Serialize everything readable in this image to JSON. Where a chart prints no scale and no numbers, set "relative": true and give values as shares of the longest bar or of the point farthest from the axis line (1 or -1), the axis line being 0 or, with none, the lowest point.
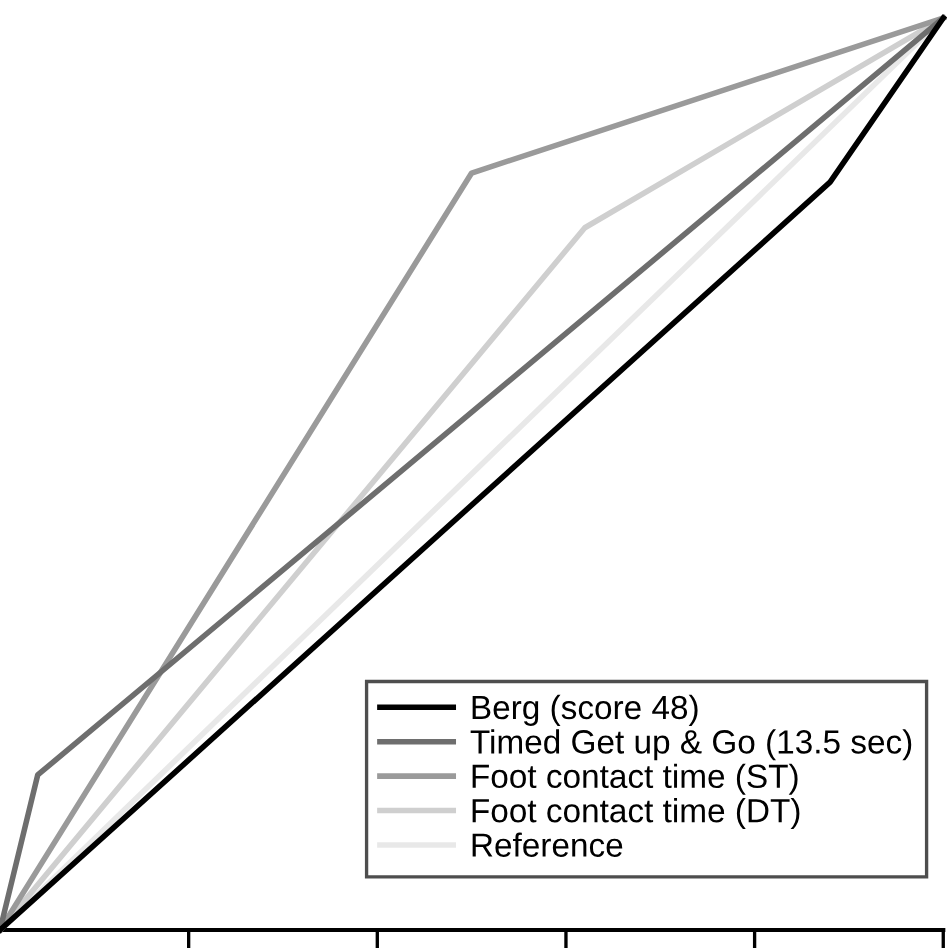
{
  "chart_data": {
    "type": "line",
    "relative": true,
    "legend": "bottom right",
    "line_style": "solid",
    "categories": [
      null,
      null,
      null,
      null,
      null,
      null,
      null,
      null,
      null,
      null,
      null,
      null,
      null,
      null,
      null,
      null,
      null,
      null,
      null,
      null,
      null,
      null,
      null,
      null,
      null,
      null,
      null,
      null,
      null,
      null,
      null,
      null,
      null,
      null,
      null,
      null,
      null,
      null,
      null,
      null,
      null,
      null,
      null,
      null,
      null,
      null,
      null,
      null,
      null,
      null,
      null
    ],
    "series": [
      {
        "name": "Berg (score 48)",
        "color": "#000000",
        "values": [
          0,
          null,
          null,
          null,
          null,
          null,
          null,
          null,
          null,
          null,
          null,
          null,
          null,
          null,
          null,
          null,
          null,
          null,
          null,
          null,
          null,
          null,
          null,
          null,
          null,
          null,
          null,
          null,
          null,
          null,
          null,
          null,
          null,
          null,
          null,
          null,
          null,
          null,
          null,
          null,
          null,
          null,
          null,
          null,
          0.82,
          null,
          null,
          null,
          null,
          null,
          1
        ]
      },
      {
        "name": "Timed Get up & Go (13.5 sec)",
        "color": "#6e6e6e",
        "values": [
          0,
          null,
          0.17,
          null,
          null,
          null,
          null,
          null,
          null,
          null,
          null,
          null,
          null,
          null,
          null,
          null,
          null,
          null,
          null,
          null,
          null,
          null,
          null,
          null,
          null,
          null,
          null,
          null,
          null,
          null,
          null,
          null,
          null,
          null,
          null,
          null,
          null,
          null,
          null,
          null,
          null,
          null,
          null,
          null,
          null,
          null,
          null,
          null,
          null,
          null,
          1
        ]
      },
      {
        "name": "Foot contact time (ST)",
        "color": "#9a9a9a",
        "values": [
          0,
          null,
          null,
          null,
          null,
          null,
          null,
          null,
          null,
          null,
          null,
          null,
          null,
          null,
          null,
          null,
          null,
          null,
          null,
          null,
          null,
          null,
          null,
          null,
          null,
          0.83,
          null,
          null,
          null,
          null,
          null,
          null,
          null,
          null,
          null,
          null,
          null,
          null,
          null,
          null,
          null,
          null,
          null,
          null,
          null,
          null,
          null,
          null,
          null,
          null,
          1
        ]
      },
      {
        "name": "Foot contact time (DT)",
        "color": "#cfcfcf",
        "values": [
          0,
          null,
          null,
          null,
          null,
          null,
          null,
          null,
          null,
          null,
          null,
          null,
          null,
          null,
          null,
          null,
          null,
          null,
          null,
          null,
          null,
          null,
          null,
          null,
          null,
          null,
          null,
          null,
          null,
          null,
          null,
          0.77,
          null,
          null,
          null,
          null,
          null,
          null,
          null,
          null,
          null,
          null,
          null,
          null,
          null,
          null,
          null,
          null,
          null,
          null,
          1
        ]
      },
      {
        "name": "Reference",
        "color": "#e8e8e8",
        "values": [
          0,
          null,
          null,
          null,
          null,
          null,
          null,
          null,
          null,
          null,
          null,
          null,
          null,
          null,
          null,
          null,
          null,
          null,
          null,
          null,
          null,
          null,
          null,
          null,
          null,
          null,
          null,
          null,
          null,
          null,
          null,
          null,
          null,
          null,
          null,
          null,
          null,
          null,
          null,
          null,
          null,
          null,
          null,
          null,
          null,
          null,
          null,
          null,
          null,
          null,
          1
        ]
      }
    ]
  }
}
